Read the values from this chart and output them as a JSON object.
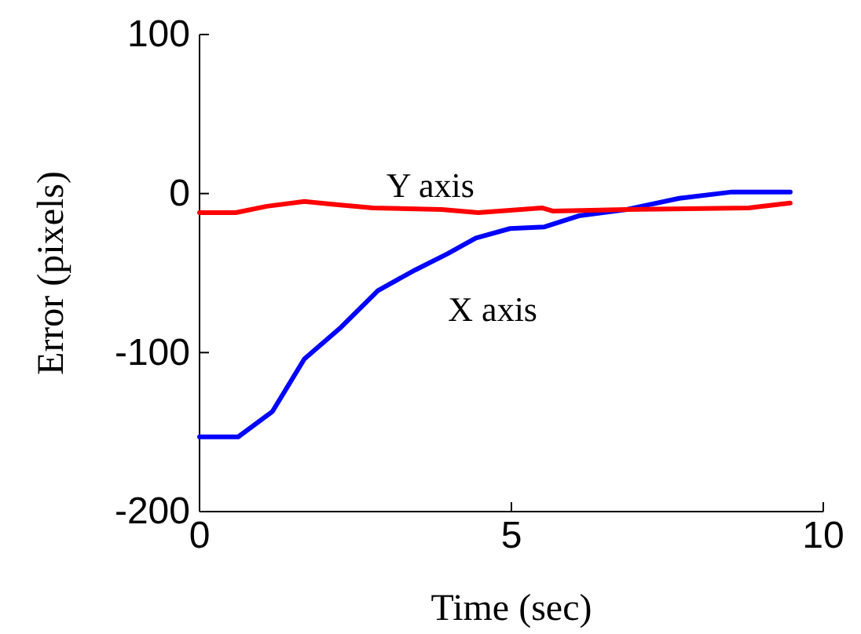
{
  "chart_data": {
    "type": "line",
    "xlabel": "Time (sec)",
    "ylabel": "Error (pixels)",
    "xlim": [
      0,
      10
    ],
    "xticks": [
      0,
      5,
      10
    ],
    "ylim": [
      -200,
      100
    ],
    "yticks": [
      -200,
      -100,
      0,
      100
    ],
    "grid": false,
    "legend": false,
    "line_style": "solid",
    "marker": "none",
    "series": [
      {
        "name": "X axis",
        "color": "#0000ff",
        "x": [
          0,
          0.62,
          1.17,
          1.68,
          2.27,
          2.86,
          3.46,
          3.97,
          4.43,
          4.98,
          5.53,
          6.08,
          6.85,
          7.69,
          8.54,
          9.47
        ],
        "values": [
          -153,
          -153,
          -137,
          -104,
          -84,
          -61,
          -48,
          -38,
          -28,
          -22,
          -21,
          -14,
          -10,
          -3,
          1,
          1
        ]
      },
      {
        "name": "Y axis",
        "color": "#ff0000",
        "x": [
          0,
          0.58,
          1.08,
          1.68,
          2.19,
          2.78,
          3.88,
          4.47,
          5.49,
          5.66,
          6.85,
          8.8,
          9.47
        ],
        "values": [
          -12,
          -12,
          -8,
          -5,
          -7,
          -9,
          -10,
          -12,
          -9,
          -11,
          -10,
          -9,
          -6
        ]
      }
    ]
  }
}
